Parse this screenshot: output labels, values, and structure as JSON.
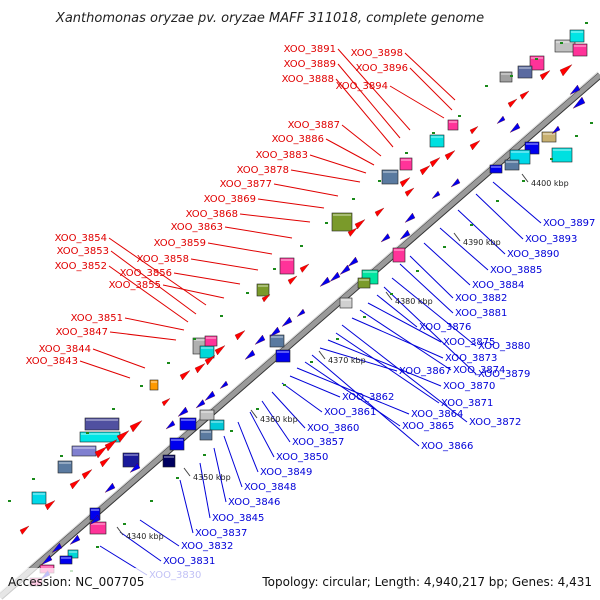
{
  "title": "Xanthomonas oryzae pv. oryzae MAFF 311018, complete genome",
  "footer": {
    "accession": "Accession: NC_007705",
    "topology": "Topology: circular; Length: 4,940,217 bp; Genes: 4,431"
  },
  "scale_ticks": [
    "4340 kbp",
    "4350 kbp",
    "4360 kbp",
    "4370 kbp",
    "4380 kbp",
    "4390 kbp",
    "4400 kbp"
  ],
  "top_strand_labels": [
    "XOO_3898",
    "XOO_3896",
    "XOO_3894",
    "XOO_3891",
    "XOO_3889",
    "XOO_3888",
    "XOO_3887",
    "XOO_3886",
    "XOO_3883",
    "XOO_3878",
    "XOO_3877",
    "XOO_3869",
    "XOO_3868",
    "XOO_3863",
    "XOO_3859",
    "XOO_3858",
    "XOO_3856",
    "XOO_3855",
    "XOO_3854",
    "XOO_3853",
    "XOO_3852",
    "XOO_3851",
    "XOO_3847",
    "XOO_3844",
    "XOO_3843"
  ],
  "bottom_strand_labels": [
    "XOO_3897",
    "XOO_3893",
    "XOO_3890",
    "XOO_3885",
    "XOO_3884",
    "XOO_3882",
    "XOO_3881",
    "XOO_3880",
    "XOO_3879",
    "XOO_3876",
    "XOO_3875",
    "XOO_3874",
    "XOO_3873",
    "XOO_3872",
    "XOO_3871",
    "XOO_3870",
    "XOO_3867",
    "XOO_3866",
    "XOO_3865",
    "XOO_3864",
    "XOO_3862",
    "XOO_3861",
    "XOO_3860",
    "XOO_3857",
    "XOO_3850",
    "XOO_3849",
    "XOO_3848",
    "XOO_3846",
    "XOO_3845",
    "XOO_3837",
    "XOO_3832",
    "XOO_3831",
    "XOO_3830"
  ],
  "colors": {
    "backbone": "#808080",
    "top_label": "#e00000",
    "bottom_label": "#0000d8",
    "forward_gene": "#ff0000",
    "reverse_gene": "#0000ee",
    "marker": "#1a8a1a"
  }
}
